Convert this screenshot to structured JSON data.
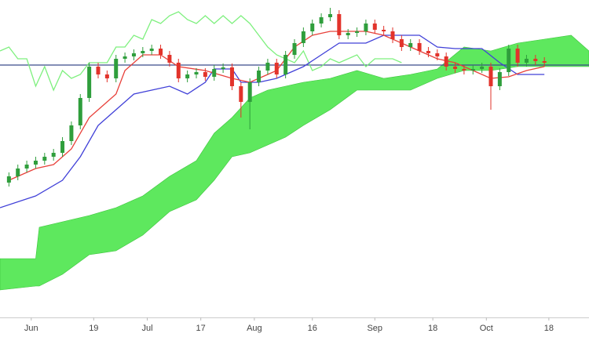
{
  "chart_data": {
    "type": "candlestick",
    "x": [
      0,
      1,
      2,
      3,
      4,
      5,
      6,
      7,
      8,
      9,
      10,
      11,
      12,
      13,
      14,
      15,
      16,
      17,
      18,
      19,
      20,
      21,
      22,
      23,
      24,
      25,
      26,
      27,
      28,
      29,
      30,
      31,
      32,
      33,
      34,
      35,
      36,
      37,
      38,
      39,
      40,
      41,
      42,
      43,
      44,
      45,
      46,
      47,
      48,
      49,
      50,
      51,
      52,
      53,
      54,
      55,
      56,
      57,
      58,
      59,
      60
    ],
    "open": [
      172,
      180,
      190,
      195,
      200,
      205,
      210,
      225,
      245,
      280,
      320,
      310,
      305,
      330,
      333,
      337,
      340,
      343,
      335,
      325,
      305,
      310,
      313,
      307,
      317,
      319,
      295,
      275,
      300,
      315,
      325,
      310,
      335,
      350,
      365,
      375,
      383,
      387,
      360,
      363,
      365,
      375,
      367,
      365,
      355,
      345,
      350,
      340,
      337,
      333,
      320,
      317,
      315,
      317,
      320,
      295,
      313,
      343,
      325,
      330,
      327
    ],
    "high": [
      185,
      195,
      200,
      205,
      210,
      215,
      230,
      250,
      285,
      325,
      325,
      315,
      335,
      338,
      342,
      345,
      348,
      348,
      340,
      330,
      315,
      318,
      318,
      322,
      324,
      324,
      300,
      305,
      320,
      330,
      330,
      340,
      355,
      370,
      380,
      388,
      395,
      392,
      368,
      370,
      380,
      380,
      372,
      370,
      360,
      355,
      355,
      345,
      342,
      338,
      325,
      322,
      322,
      325,
      325,
      318,
      348,
      348,
      335,
      335,
      332
    ],
    "low": [
      167,
      175,
      185,
      190,
      195,
      200,
      205,
      220,
      240,
      275,
      305,
      300,
      300,
      325,
      328,
      332,
      335,
      330,
      320,
      300,
      300,
      305,
      302,
      302,
      312,
      290,
      255,
      240,
      295,
      310,
      305,
      305,
      330,
      345,
      360,
      370,
      378,
      355,
      355,
      358,
      360,
      362,
      360,
      350,
      340,
      340,
      335,
      332,
      328,
      315,
      312,
      310,
      310,
      312,
      265,
      290,
      308,
      320,
      320,
      322,
      320
    ],
    "close": [
      180,
      190,
      195,
      200,
      205,
      210,
      225,
      245,
      280,
      320,
      310,
      305,
      330,
      333,
      337,
      340,
      343,
      335,
      325,
      305,
      310,
      313,
      307,
      317,
      319,
      295,
      275,
      300,
      315,
      325,
      310,
      335,
      350,
      365,
      375,
      383,
      387,
      360,
      363,
      365,
      375,
      367,
      365,
      355,
      345,
      350,
      340,
      337,
      333,
      320,
      317,
      315,
      317,
      320,
      295,
      313,
      343,
      325,
      330,
      327,
      325
    ],
    "up_color": "#2f9e3c",
    "down_color": "#e2332b",
    "xlim": [
      -1,
      65
    ],
    "ylim": [
      0,
      405
    ],
    "xticks": [
      {
        "value": 2.5,
        "label": "Jun"
      },
      {
        "value": 9.5,
        "label": "19"
      },
      {
        "value": 15.5,
        "label": "Jul"
      },
      {
        "value": 21.5,
        "label": "17"
      },
      {
        "value": 27.5,
        "label": "Aug"
      },
      {
        "value": 34,
        "label": "16"
      },
      {
        "value": 41,
        "label": "Sep"
      },
      {
        "value": 47.5,
        "label": "18"
      },
      {
        "value": 53.5,
        "label": "Oct"
      },
      {
        "value": 60.5,
        "label": "18"
      }
    ],
    "cloud": {
      "x": [
        -1,
        3,
        3.4,
        6,
        9,
        12,
        15,
        18,
        21,
        23,
        25,
        27,
        29,
        31,
        33,
        36,
        39,
        42,
        45,
        48,
        51,
        54,
        57,
        60,
        63,
        65
      ],
      "upper": [
        75,
        75,
        115,
        122,
        130,
        140,
        155,
        180,
        200,
        235,
        255,
        280,
        290,
        295,
        300,
        305,
        315,
        305,
        310,
        317,
        345,
        340,
        350,
        355,
        360,
        340
      ],
      "lower": [
        35,
        40,
        40,
        55,
        80,
        85,
        105,
        135,
        150,
        175,
        205,
        210,
        220,
        230,
        245,
        265,
        290,
        290,
        290,
        305,
        315,
        315,
        320,
        320,
        320,
        320
      ],
      "color": "#5ee85e"
    },
    "lines": [
      {
        "color": "#7ef07e",
        "x": [
          -1,
          0,
          1,
          2,
          3,
          4,
          5,
          6,
          7,
          8,
          9,
          10,
          11,
          12,
          13,
          14,
          15,
          16,
          17,
          18,
          19,
          20,
          21,
          22,
          23,
          24,
          25,
          26,
          27,
          28,
          29,
          30,
          31,
          32,
          33,
          34,
          35,
          36,
          37,
          38,
          39,
          40,
          41,
          42,
          43,
          44
        ],
        "values": [
          340,
          345,
          330,
          330,
          295,
          320,
          290,
          315,
          305,
          310,
          325,
          325,
          325,
          345,
          345,
          360,
          355,
          380,
          375,
          385,
          390,
          380,
          375,
          385,
          375,
          385,
          375,
          385,
          375,
          360,
          345,
          335,
          330,
          325,
          340,
          315,
          320,
          330,
          325,
          330,
          335,
          320,
          330,
          330,
          330,
          325
        ]
      },
      {
        "color": "#4040d8",
        "x": [
          -1,
          3,
          6,
          8,
          10,
          12,
          14,
          16,
          18,
          20,
          22,
          23,
          25,
          26,
          28,
          30,
          31,
          32,
          33,
          35,
          37,
          40,
          42,
          46,
          48,
          50,
          53,
          55,
          57,
          60
        ],
        "values": [
          140,
          155,
          175,
          205,
          245,
          265,
          285,
          290,
          295,
          285,
          300,
          317,
          317,
          300,
          300,
          305,
          310,
          315,
          320,
          335,
          350,
          350,
          360,
          360,
          345,
          343,
          343,
          325,
          310,
          310
        ]
      },
      {
        "color": "#e8403a",
        "x": [
          0,
          3,
          5,
          7,
          9,
          10,
          12,
          13,
          15,
          17,
          19,
          22,
          25,
          27,
          29,
          30,
          31,
          32,
          34,
          36,
          40,
          42,
          44,
          46,
          48,
          50,
          52,
          54,
          56,
          58,
          60
        ],
        "values": [
          175,
          190,
          195,
          215,
          255,
          265,
          285,
          315,
          335,
          335,
          320,
          315,
          305,
          300,
          310,
          315,
          330,
          345,
          360,
          365,
          365,
          360,
          350,
          340,
          330,
          325,
          315,
          305,
          307,
          315,
          320
        ]
      }
    ],
    "hline": {
      "value": 322,
      "color": "#3b4a8a"
    }
  }
}
